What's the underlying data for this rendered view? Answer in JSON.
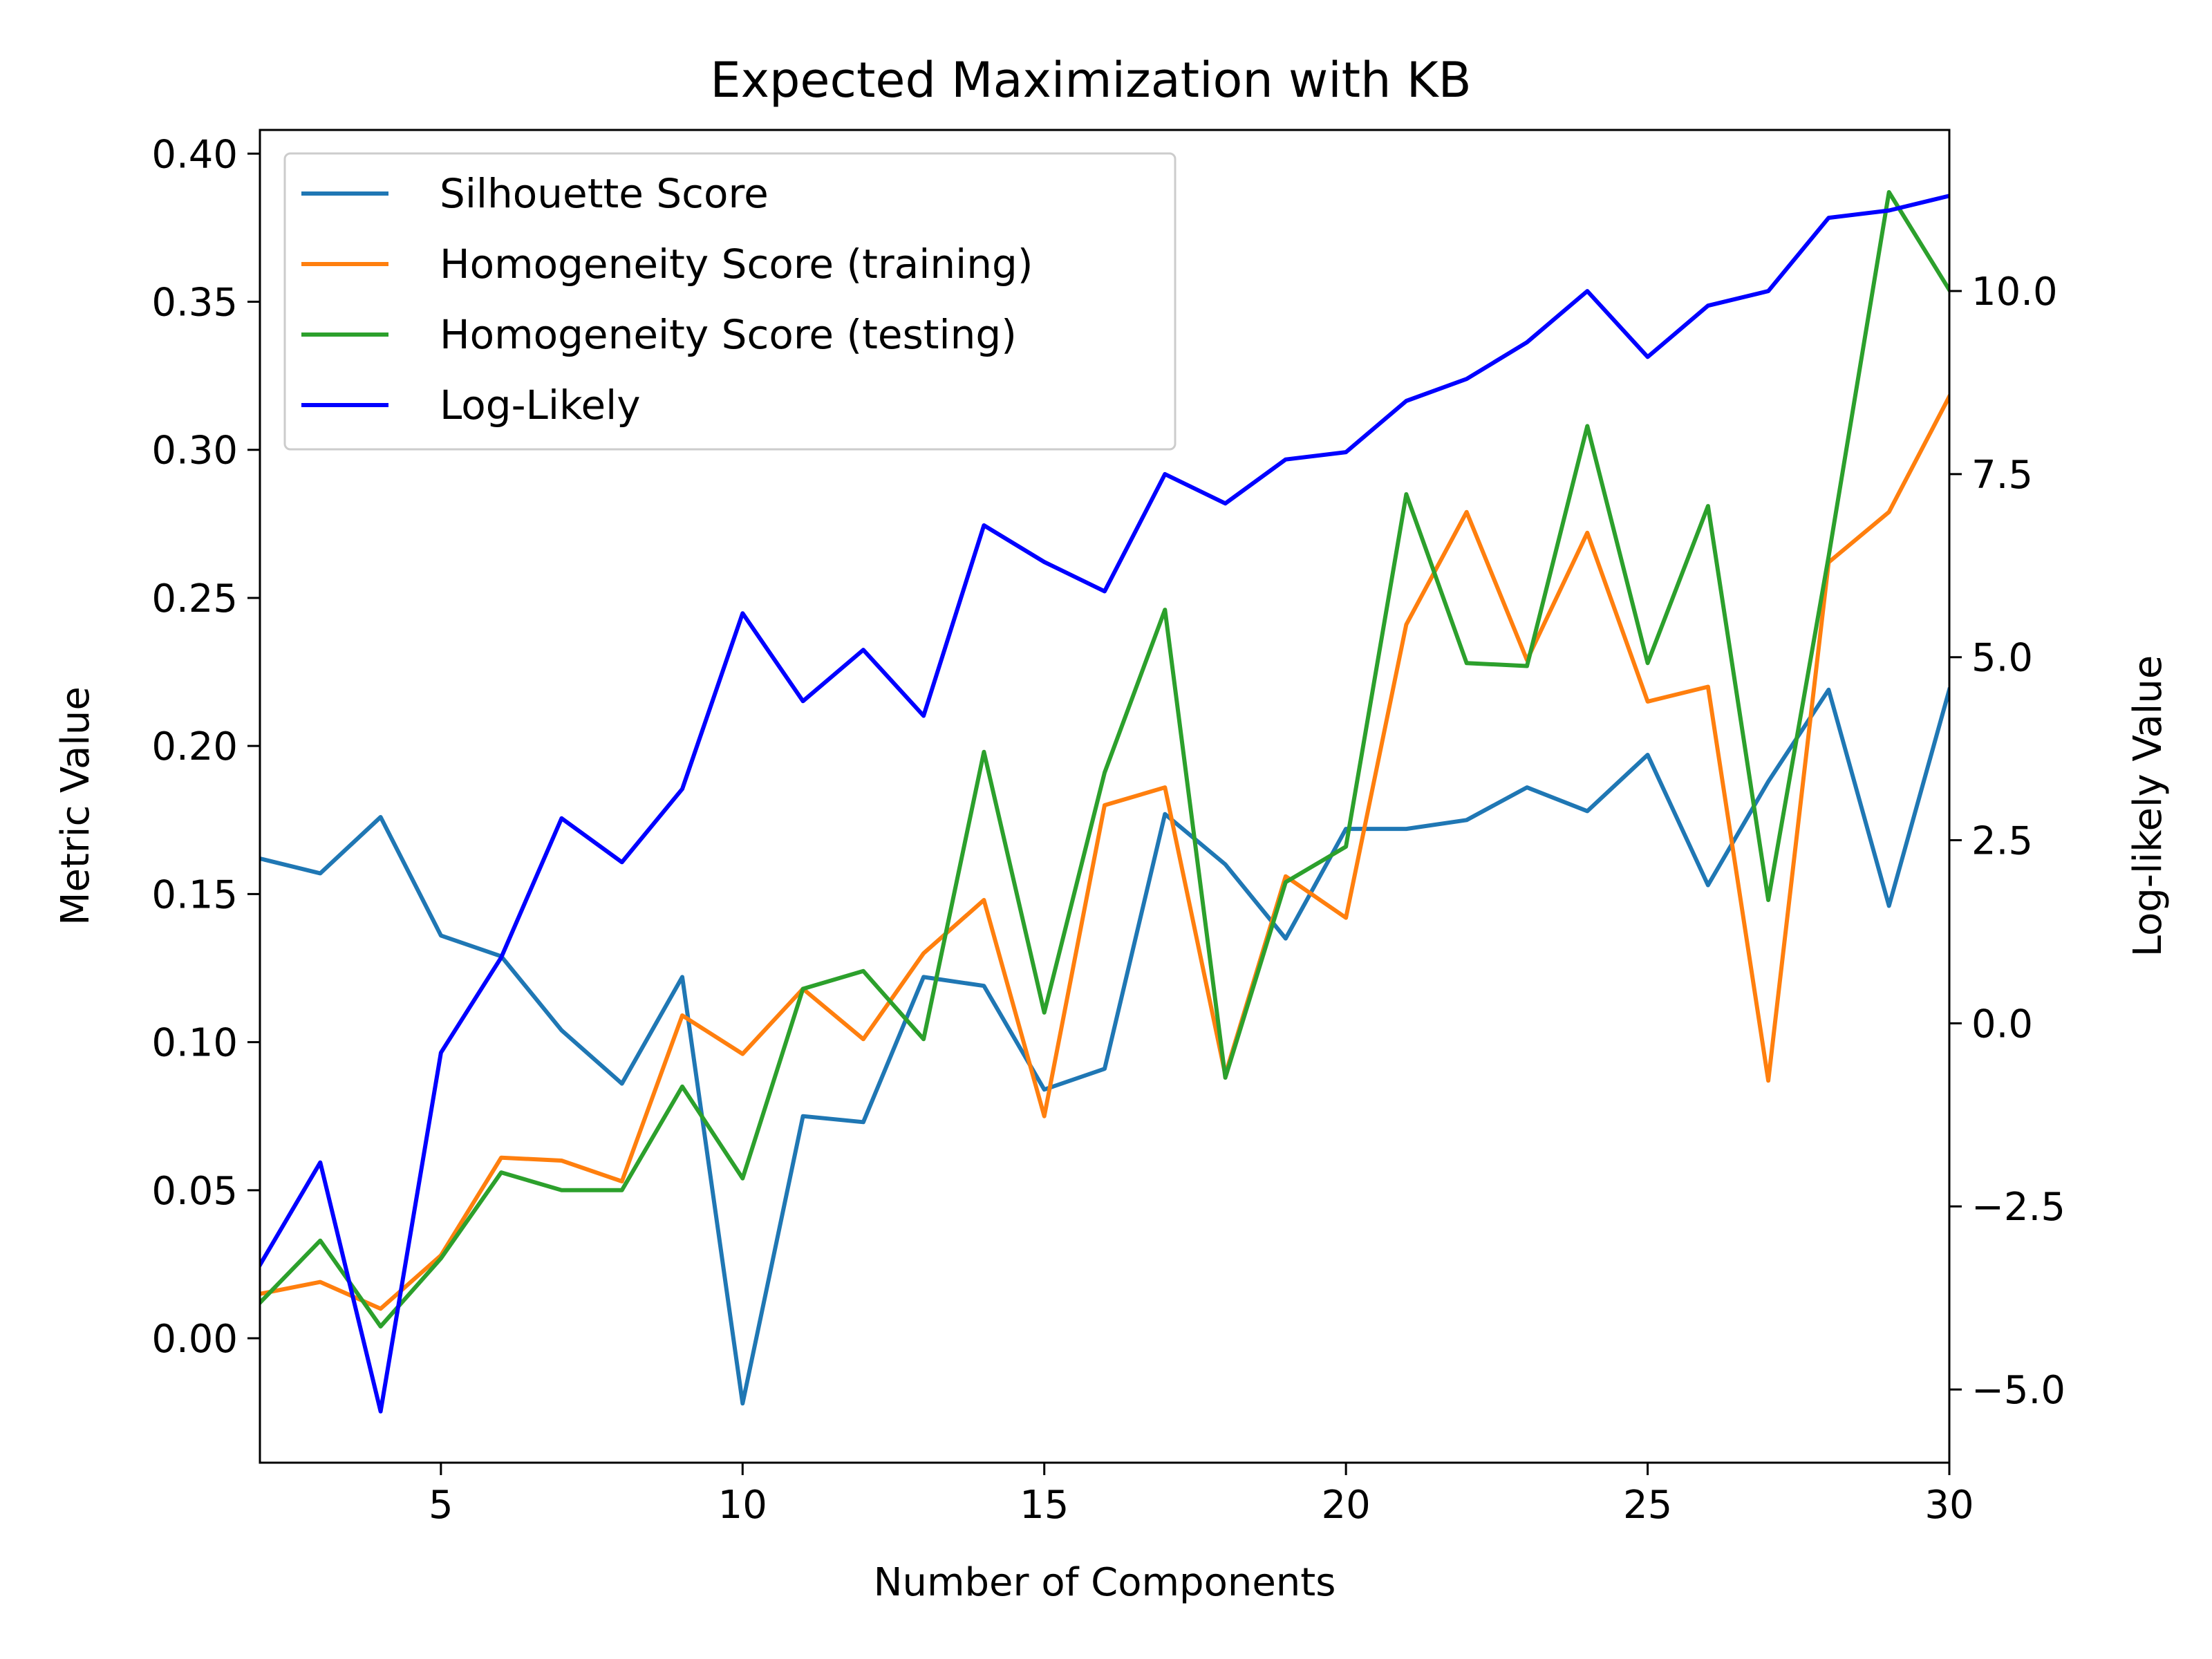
{
  "chart_data": {
    "type": "line",
    "title": "Expected Maximization with KB",
    "xlabel": "Number of Components",
    "ylabel": "Metric Value",
    "y2label": "Log-likely Value",
    "xlim": [
      2,
      30
    ],
    "ylim": [
      -0.042,
      0.408
    ],
    "y2lim": [
      -6.0,
      12.2
    ],
    "xticks": [
      5,
      10,
      15,
      20,
      25,
      30
    ],
    "yticks": [
      0.0,
      0.05,
      0.1,
      0.15,
      0.2,
      0.25,
      0.3,
      0.35,
      0.4
    ],
    "yticklabels": [
      "0.00",
      "0.05",
      "0.10",
      "0.15",
      "0.20",
      "0.25",
      "0.30",
      "0.35",
      "0.40"
    ],
    "y2ticks": [
      -5.0,
      -2.5,
      0.0,
      2.5,
      5.0,
      7.5,
      10.0
    ],
    "y2ticklabels": [
      "−5.0",
      "−2.5",
      "0.0",
      "2.5",
      "5.0",
      "7.5",
      "10.0"
    ],
    "grid": false,
    "legend_position": "top-left",
    "x": [
      2,
      3,
      4,
      5,
      6,
      7,
      8,
      9,
      10,
      11,
      12,
      13,
      14,
      15,
      16,
      17,
      18,
      19,
      20,
      21,
      22,
      23,
      24,
      25,
      26,
      27,
      28,
      29,
      30
    ],
    "series": [
      {
        "name": "Silhouette Score",
        "axis": "left",
        "color": "#1f77b4",
        "values": [
          0.162,
          0.157,
          0.176,
          0.136,
          0.129,
          0.104,
          0.086,
          0.122,
          -0.022,
          0.075,
          0.073,
          0.122,
          0.119,
          0.084,
          0.091,
          0.177,
          0.16,
          0.135,
          0.172,
          0.172,
          0.175,
          0.186,
          0.178,
          0.197,
          0.153,
          0.188,
          0.219,
          0.146,
          0.219
        ]
      },
      {
        "name": "Homogeneity Score (training)",
        "axis": "left",
        "color": "#ff7f0e",
        "values": [
          0.015,
          0.019,
          0.01,
          0.028,
          0.061,
          0.06,
          0.053,
          0.109,
          0.096,
          0.118,
          0.101,
          0.13,
          0.148,
          0.075,
          0.18,
          0.186,
          0.089,
          0.156,
          0.142,
          0.241,
          0.279,
          0.229,
          0.272,
          0.215,
          0.22,
          0.087,
          0.262,
          0.279,
          0.318
        ]
      },
      {
        "name": "Homogeneity Score (testing)",
        "axis": "left",
        "color": "#2ca02c",
        "values": [
          0.012,
          0.033,
          0.004,
          0.027,
          0.056,
          0.05,
          0.05,
          0.085,
          0.054,
          0.118,
          0.124,
          0.101,
          0.198,
          0.11,
          0.191,
          0.246,
          0.088,
          0.154,
          0.166,
          0.285,
          0.228,
          0.227,
          0.308,
          0.228,
          0.281,
          0.148,
          0.264,
          0.387,
          0.354
        ]
      },
      {
        "name": "Log-Likely",
        "axis": "right",
        "color": "#0000ff",
        "values": [
          -3.3,
          -1.9,
          -5.3,
          -0.4,
          0.9,
          2.8,
          2.2,
          3.2,
          5.6,
          4.4,
          5.1,
          4.2,
          6.8,
          6.3,
          5.9,
          7.5,
          7.1,
          7.7,
          7.8,
          8.5,
          8.8,
          9.3,
          10.0,
          9.1,
          9.8,
          10.0,
          11.0,
          11.1,
          11.3
        ]
      }
    ]
  }
}
